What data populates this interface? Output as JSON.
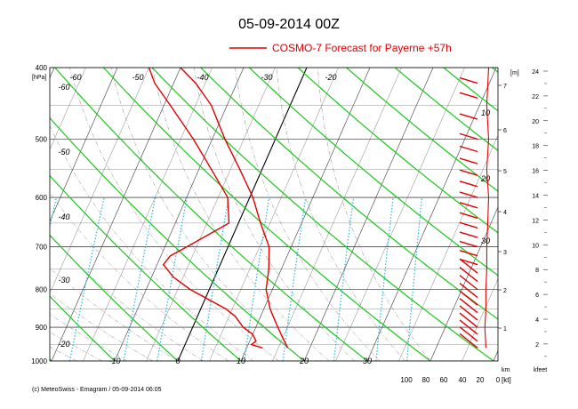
{
  "title": "05-09-2014  00Z",
  "legend": {
    "label": "COSMO-7 Forecast for Payerne   +57h",
    "color": "#e00000"
  },
  "footer": "(c) MeteoSwiss - Emagram  /  05-09-2014  06:05",
  "colors": {
    "isotherm": "#2a2a2a",
    "dry_adiabat": "#17c917",
    "mixing_ratio": "#21b6e0",
    "profile": "#e00000",
    "zero_isotherm": "#000000"
  },
  "chart_data": {
    "type": "line",
    "diagram": "Emagram",
    "y_axis": {
      "unit": "[hPa]",
      "scale": "log",
      "range": [
        1000,
        400
      ],
      "ticks": [
        400,
        500,
        600,
        700,
        800,
        900,
        1000
      ]
    },
    "temperature_ticks": [
      "-10",
      "0",
      "10",
      "20",
      "30"
    ],
    "isotherm_labels": [
      "-60",
      "-50",
      "-40",
      "-30",
      "-20",
      "-60",
      "-50",
      "-40",
      "-30",
      "-20"
    ],
    "altitude_m_labels": [
      "7",
      "6",
      "5",
      "4",
      "3",
      "2",
      "1"
    ],
    "altitude_m_unit": "[m]",
    "altitude_m_unit_bottom": "km",
    "altitude_kfeet_labels": [
      "24",
      "22",
      "20",
      "18",
      "16",
      "14",
      "12",
      "10",
      "8",
      "6",
      "4",
      "2"
    ],
    "altitude_kfeet_unit": "kfeet",
    "wind_speed_ticks": [
      "100",
      "80",
      "60",
      "40",
      "20",
      "0"
    ],
    "wind_speed_unit": "[kt]",
    "wind_profile_labels": [
      "10",
      "20",
      "30"
    ],
    "series": [
      {
        "name": "COSMO-7 Forecast for Payerne   +57h",
        "kind": "temperature",
        "points": [
          {
            "p": 960,
            "t": 16.5
          },
          {
            "p": 950,
            "t": 16.0
          },
          {
            "p": 940,
            "t": 15.5
          },
          {
            "p": 920,
            "t": 14.5
          },
          {
            "p": 900,
            "t": 13.5
          },
          {
            "p": 870,
            "t": 12.0
          },
          {
            "p": 850,
            "t": 11.0
          },
          {
            "p": 800,
            "t": 9.0
          },
          {
            "p": 750,
            "t": 8.0
          },
          {
            "p": 700,
            "t": 6.5
          },
          {
            "p": 650,
            "t": 3.5
          },
          {
            "p": 600,
            "t": 0.5
          },
          {
            "p": 550,
            "t": -3.5
          },
          {
            "p": 500,
            "t": -8.0
          },
          {
            "p": 450,
            "t": -12.5
          },
          {
            "p": 420,
            "t": -16.5
          },
          {
            "p": 400,
            "t": -20.0
          }
        ]
      },
      {
        "name": "COSMO-7 Forecast for Payerne   +57h",
        "kind": "dewpoint",
        "points": [
          {
            "p": 960,
            "t": 12.5
          },
          {
            "p": 950,
            "t": 10.5
          },
          {
            "p": 940,
            "t": 11.0
          },
          {
            "p": 920,
            "t": 10.0
          },
          {
            "p": 900,
            "t": 8.0
          },
          {
            "p": 870,
            "t": 6.0
          },
          {
            "p": 850,
            "t": 4.0
          },
          {
            "p": 800,
            "t": -3.0
          },
          {
            "p": 770,
            "t": -6.5
          },
          {
            "p": 740,
            "t": -9.0
          },
          {
            "p": 720,
            "t": -8.5
          },
          {
            "p": 700,
            "t": -6.5
          },
          {
            "p": 650,
            "t": -1.5
          },
          {
            "p": 600,
            "t": -3.5
          },
          {
            "p": 550,
            "t": -8.0
          },
          {
            "p": 500,
            "t": -13.0
          },
          {
            "p": 450,
            "t": -19.0
          },
          {
            "p": 420,
            "t": -23.0
          },
          {
            "p": 400,
            "t": -25.0
          }
        ]
      }
    ],
    "wind_barbs": [
      {
        "p": 960,
        "speed_kt": 10
      },
      {
        "p": 940,
        "speed_kt": 10
      },
      {
        "p": 920,
        "speed_kt": 10
      },
      {
        "p": 900,
        "speed_kt": 10
      },
      {
        "p": 880,
        "speed_kt": 10
      },
      {
        "p": 860,
        "speed_kt": 10
      },
      {
        "p": 840,
        "speed_kt": 10
      },
      {
        "p": 820,
        "speed_kt": 10
      },
      {
        "p": 800,
        "speed_kt": 10
      },
      {
        "p": 780,
        "speed_kt": 10
      },
      {
        "p": 760,
        "speed_kt": 10
      },
      {
        "p": 740,
        "speed_kt": 10
      },
      {
        "p": 720,
        "speed_kt": 15
      },
      {
        "p": 700,
        "speed_kt": 15
      },
      {
        "p": 680,
        "speed_kt": 15
      },
      {
        "p": 660,
        "speed_kt": 15
      },
      {
        "p": 640,
        "speed_kt": 15
      },
      {
        "p": 620,
        "speed_kt": 15
      },
      {
        "p": 600,
        "speed_kt": 15
      },
      {
        "p": 580,
        "speed_kt": 15
      },
      {
        "p": 560,
        "speed_kt": 15
      },
      {
        "p": 540,
        "speed_kt": 15
      },
      {
        "p": 520,
        "speed_kt": 15
      },
      {
        "p": 500,
        "speed_kt": 15
      },
      {
        "p": 470,
        "speed_kt": 15
      },
      {
        "p": 440,
        "speed_kt": 15
      },
      {
        "p": 420,
        "speed_kt": 15
      }
    ],
    "wind_speed_profile": [
      {
        "p": 960,
        "speed_kt": 13
      },
      {
        "p": 900,
        "speed_kt": 14
      },
      {
        "p": 850,
        "speed_kt": 13
      },
      {
        "p": 800,
        "speed_kt": 13
      },
      {
        "p": 750,
        "speed_kt": 12
      },
      {
        "p": 700,
        "speed_kt": 12
      },
      {
        "p": 650,
        "speed_kt": 11
      },
      {
        "p": 600,
        "speed_kt": 10
      },
      {
        "p": 550,
        "speed_kt": 12
      },
      {
        "p": 500,
        "speed_kt": 10
      },
      {
        "p": 450,
        "speed_kt": 12
      },
      {
        "p": 400,
        "speed_kt": 10
      }
    ]
  }
}
